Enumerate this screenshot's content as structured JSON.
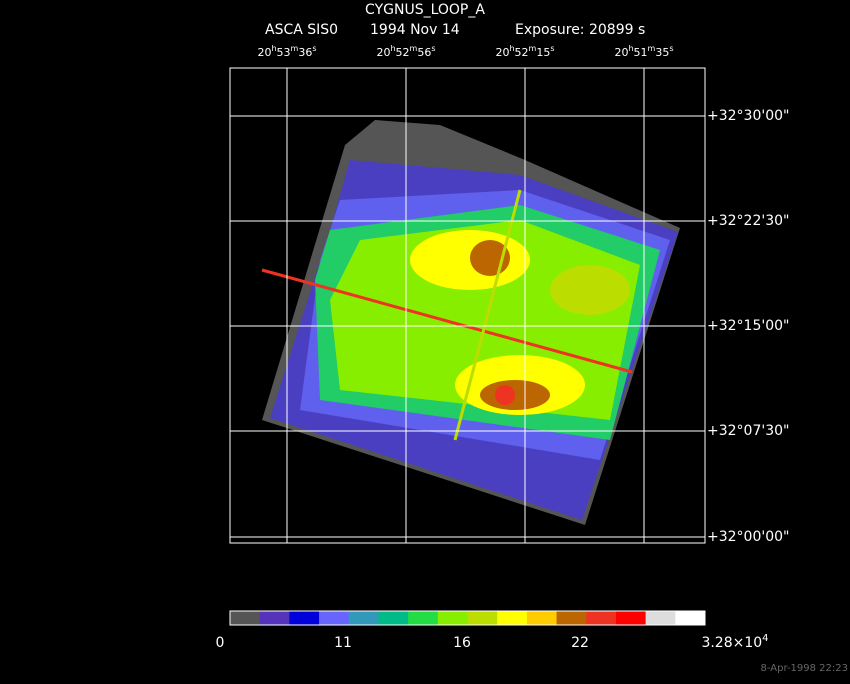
{
  "title": "CYGNUS_LOOP_A",
  "subtitle": [
    "ASCA SIS0",
    "1994 Nov 14",
    "Exposure: 20899 s"
  ],
  "ra_labels": [
    [
      "20",
      "h",
      "53",
      "m",
      "36",
      "s"
    ],
    [
      "20",
      "h",
      "52",
      "m",
      "56",
      "s"
    ],
    [
      "20",
      "h",
      "52",
      "m",
      "15",
      "s"
    ],
    [
      "20",
      "h",
      "51",
      "m",
      "35",
      "s"
    ]
  ],
  "dec_labels": [
    "+32°30'00\"",
    "+32°22'30\"",
    "+32°15'00\"",
    "+32°07'30\"",
    "+32°00'00\""
  ],
  "colorbar": {
    "colors": [
      "#555555",
      "#5533bb",
      "#0000dd",
      "#6666ff",
      "#3399bb",
      "#00bb88",
      "#22dd44",
      "#88ee00",
      "#bbdd00",
      "#ffff00",
      "#ffcc00",
      "#bb6600",
      "#ee3322",
      "#ff0000",
      "#dddddd",
      "#ffffff"
    ],
    "labels": [
      [
        "0"
      ],
      [
        "11"
      ],
      [
        "16"
      ],
      [
        "22"
      ],
      [
        "3.28×10",
        "4"
      ]
    ]
  },
  "footer": "8-Apr-1998 22:23"
}
